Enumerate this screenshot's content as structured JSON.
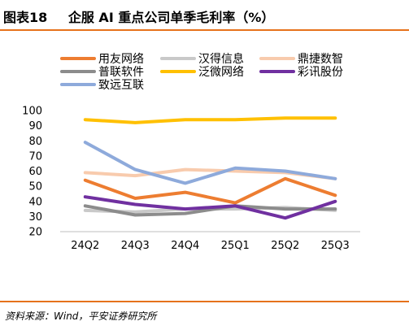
{
  "figure": {
    "number": "图表18",
    "title": "企服 AI 重点公司单季毛利率（%）",
    "source": "资料来源：Wind，平安证券研究所",
    "accent_color": "#e6721c"
  },
  "chart_data": {
    "type": "line",
    "categories": [
      "24Q2",
      "24Q3",
      "24Q4",
      "25Q1",
      "25Q2",
      "25Q3"
    ],
    "ylim": [
      20,
      100
    ],
    "yticks": [
      20,
      30,
      40,
      50,
      60,
      70,
      80,
      90,
      100
    ],
    "grid": false,
    "legend_position": "top",
    "title": "",
    "xlabel": "",
    "ylabel": "",
    "series": [
      {
        "name": "用友网络",
        "color": "#ed7d31",
        "values": [
          54,
          42,
          46,
          39,
          55,
          44
        ]
      },
      {
        "name": "汉得信息",
        "color": "#c9c9c9",
        "values": [
          34,
          33,
          35,
          35,
          36,
          34
        ]
      },
      {
        "name": "鼎捷数智",
        "color": "#f8cbad",
        "values": [
          59,
          57,
          61,
          60,
          59,
          55
        ]
      },
      {
        "name": "普联软件",
        "color": "#8c8c8c",
        "values": [
          37,
          31,
          32,
          37,
          35,
          35
        ]
      },
      {
        "name": "泛微网络",
        "color": "#ffc000",
        "values": [
          94,
          92,
          94,
          94,
          95,
          95
        ]
      },
      {
        "name": "彩讯股份",
        "color": "#7030a0",
        "values": [
          43,
          38,
          35,
          37,
          29,
          40
        ]
      },
      {
        "name": "致远互联",
        "color": "#8eaadb",
        "values": [
          79,
          61,
          52,
          62,
          60,
          55
        ]
      }
    ]
  }
}
